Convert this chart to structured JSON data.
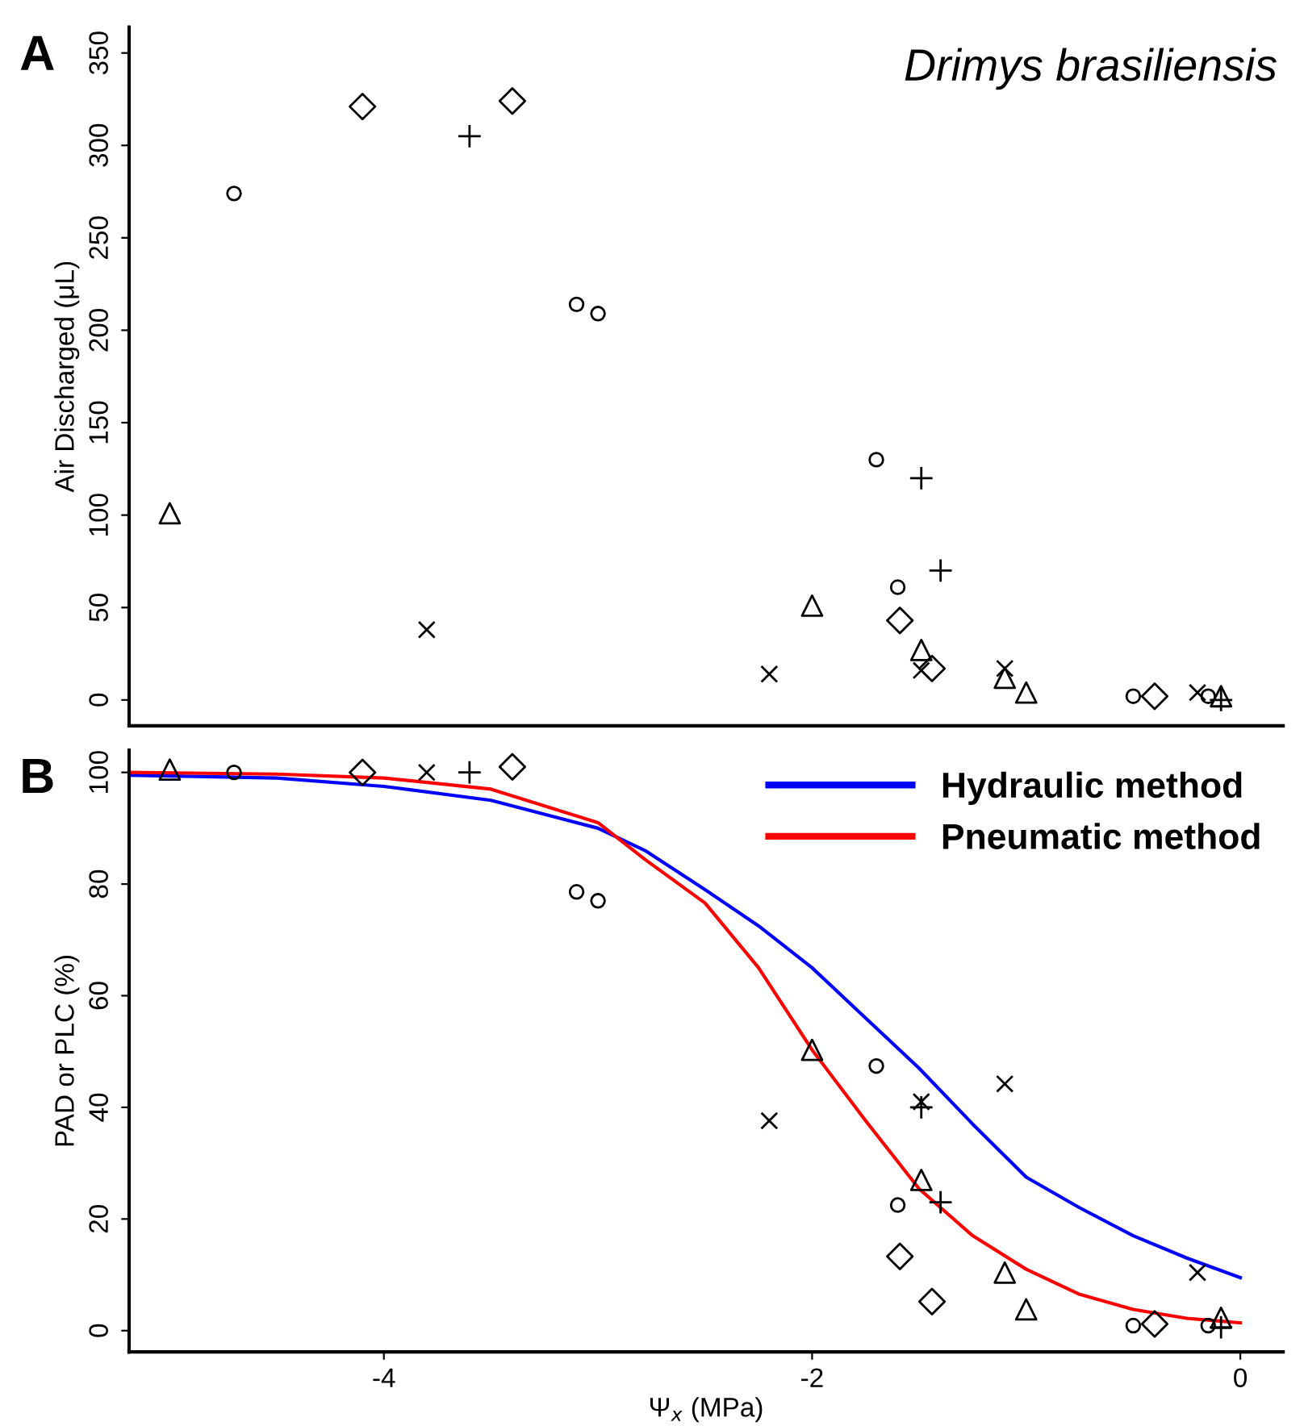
{
  "chart_data": [
    {
      "type": "scatter",
      "title": "Drimys brasiliensis",
      "ylabel": "Air Discharged (μL)",
      "annotations": [
        "A"
      ],
      "xlim": [
        -5.19,
        0.2
      ],
      "ylim": [
        -14,
        364
      ],
      "yticks": [
        0,
        50,
        100,
        150,
        200,
        250,
        300,
        350
      ],
      "tick_labels": "y",
      "grid": false,
      "legend": false,
      "series": [
        {
          "marker": "triangle",
          "color": "#000000",
          "x": [
            -5.0,
            -2.0,
            -1.49,
            -1.1,
            -1.0,
            -0.09
          ],
          "values": [
            101,
            51,
            27,
            12,
            4,
            2
          ]
        },
        {
          "marker": "circle",
          "color": "#000000",
          "x": [
            -4.7,
            -3.1,
            -3.0,
            -1.7,
            -1.6,
            -0.5,
            -0.15
          ],
          "values": [
            274,
            214,
            209,
            130,
            61,
            2,
            2
          ]
        },
        {
          "marker": "diamond",
          "color": "#000000",
          "x": [
            -4.1,
            -3.4,
            -1.59,
            -1.44,
            -0.4
          ],
          "values": [
            321,
            324,
            43,
            17,
            2
          ]
        },
        {
          "marker": "cross",
          "color": "#000000",
          "x": [
            -3.8,
            -2.2,
            -1.49,
            -1.1,
            -0.2
          ],
          "values": [
            38,
            14,
            16,
            17,
            4
          ]
        },
        {
          "marker": "plus",
          "color": "#000000",
          "x": [
            -3.6,
            -1.49,
            -1.4,
            -0.09
          ],
          "values": [
            305,
            120,
            70,
            0
          ]
        }
      ]
    },
    {
      "type": "scatter",
      "xlabel": "Ψ$_{x}$ (MPa)",
      "ylabel": "PAD or PLC (%)",
      "annotations": [
        "B"
      ],
      "xlim": [
        -5.19,
        0.2
      ],
      "ylim": [
        -3.8,
        104
      ],
      "xticks": [
        -4,
        -2,
        0
      ],
      "yticks": [
        0,
        20,
        40,
        60,
        80,
        100
      ],
      "grid": false,
      "legend": "top right",
      "series": [
        {
          "marker": "triangle",
          "color": "#000000",
          "x": [
            -5.0,
            -2.0,
            -1.49,
            -1.1,
            -1.0,
            -0.09
          ],
          "values": [
            100.5,
            50.3,
            27,
            10.4,
            3.8,
            2.3
          ]
        },
        {
          "marker": "circle",
          "color": "#000000",
          "x": [
            -4.7,
            -3.1,
            -3.0,
            -1.7,
            -1.6,
            -0.5,
            -0.15
          ],
          "values": [
            100,
            78.6,
            77,
            47.4,
            22.5,
            0.9,
            0.9
          ]
        },
        {
          "marker": "diamond",
          "color": "#000000",
          "x": [
            -4.1,
            -3.4,
            -1.59,
            -1.44,
            -0.4
          ],
          "values": [
            100,
            101,
            13.3,
            5.2,
            1.2
          ]
        },
        {
          "marker": "cross",
          "color": "#000000",
          "x": [
            -3.8,
            -2.2,
            -1.49,
            -1.1,
            -0.2
          ],
          "values": [
            100,
            37.6,
            41,
            44.2,
            10.4
          ]
        },
        {
          "marker": "plus",
          "color": "#000000",
          "x": [
            -3.6,
            -1.49,
            -1.4,
            -0.09
          ],
          "values": [
            100,
            40,
            23,
            0.6
          ]
        },
        {
          "type": "line",
          "name": "Hydraulic method",
          "color": "#0000ff",
          "marker": "none",
          "line_style": "solid",
          "x": [
            -5.19,
            -4.5,
            -4.0,
            -3.5,
            -3.0,
            -2.78,
            -2.5,
            -2.25,
            -2.0,
            -1.75,
            -1.5,
            -1.25,
            -1.0,
            -0.75,
            -0.5,
            -0.25,
            0.0
          ],
          "values": [
            99.5,
            99,
            97.5,
            95,
            90,
            86,
            79,
            72.5,
            65,
            56,
            47,
            37,
            27.5,
            22,
            17,
            13,
            9.5
          ]
        },
        {
          "type": "line",
          "name": "Pneumatic method",
          "color": "#ff0000",
          "marker": "none",
          "line_style": "solid",
          "x": [
            -5.19,
            -4.5,
            -4.0,
            -3.5,
            -3.0,
            -2.78,
            -2.5,
            -2.25,
            -2.0,
            -1.75,
            -1.5,
            -1.25,
            -1.0,
            -0.75,
            -0.5,
            -0.25,
            0.0
          ],
          "values": [
            100,
            99.7,
            99,
            97,
            91,
            84.4,
            76.6,
            65,
            50.3,
            37.6,
            25.4,
            17,
            11,
            6.5,
            3.8,
            2.2,
            1.4
          ]
        }
      ]
    }
  ]
}
